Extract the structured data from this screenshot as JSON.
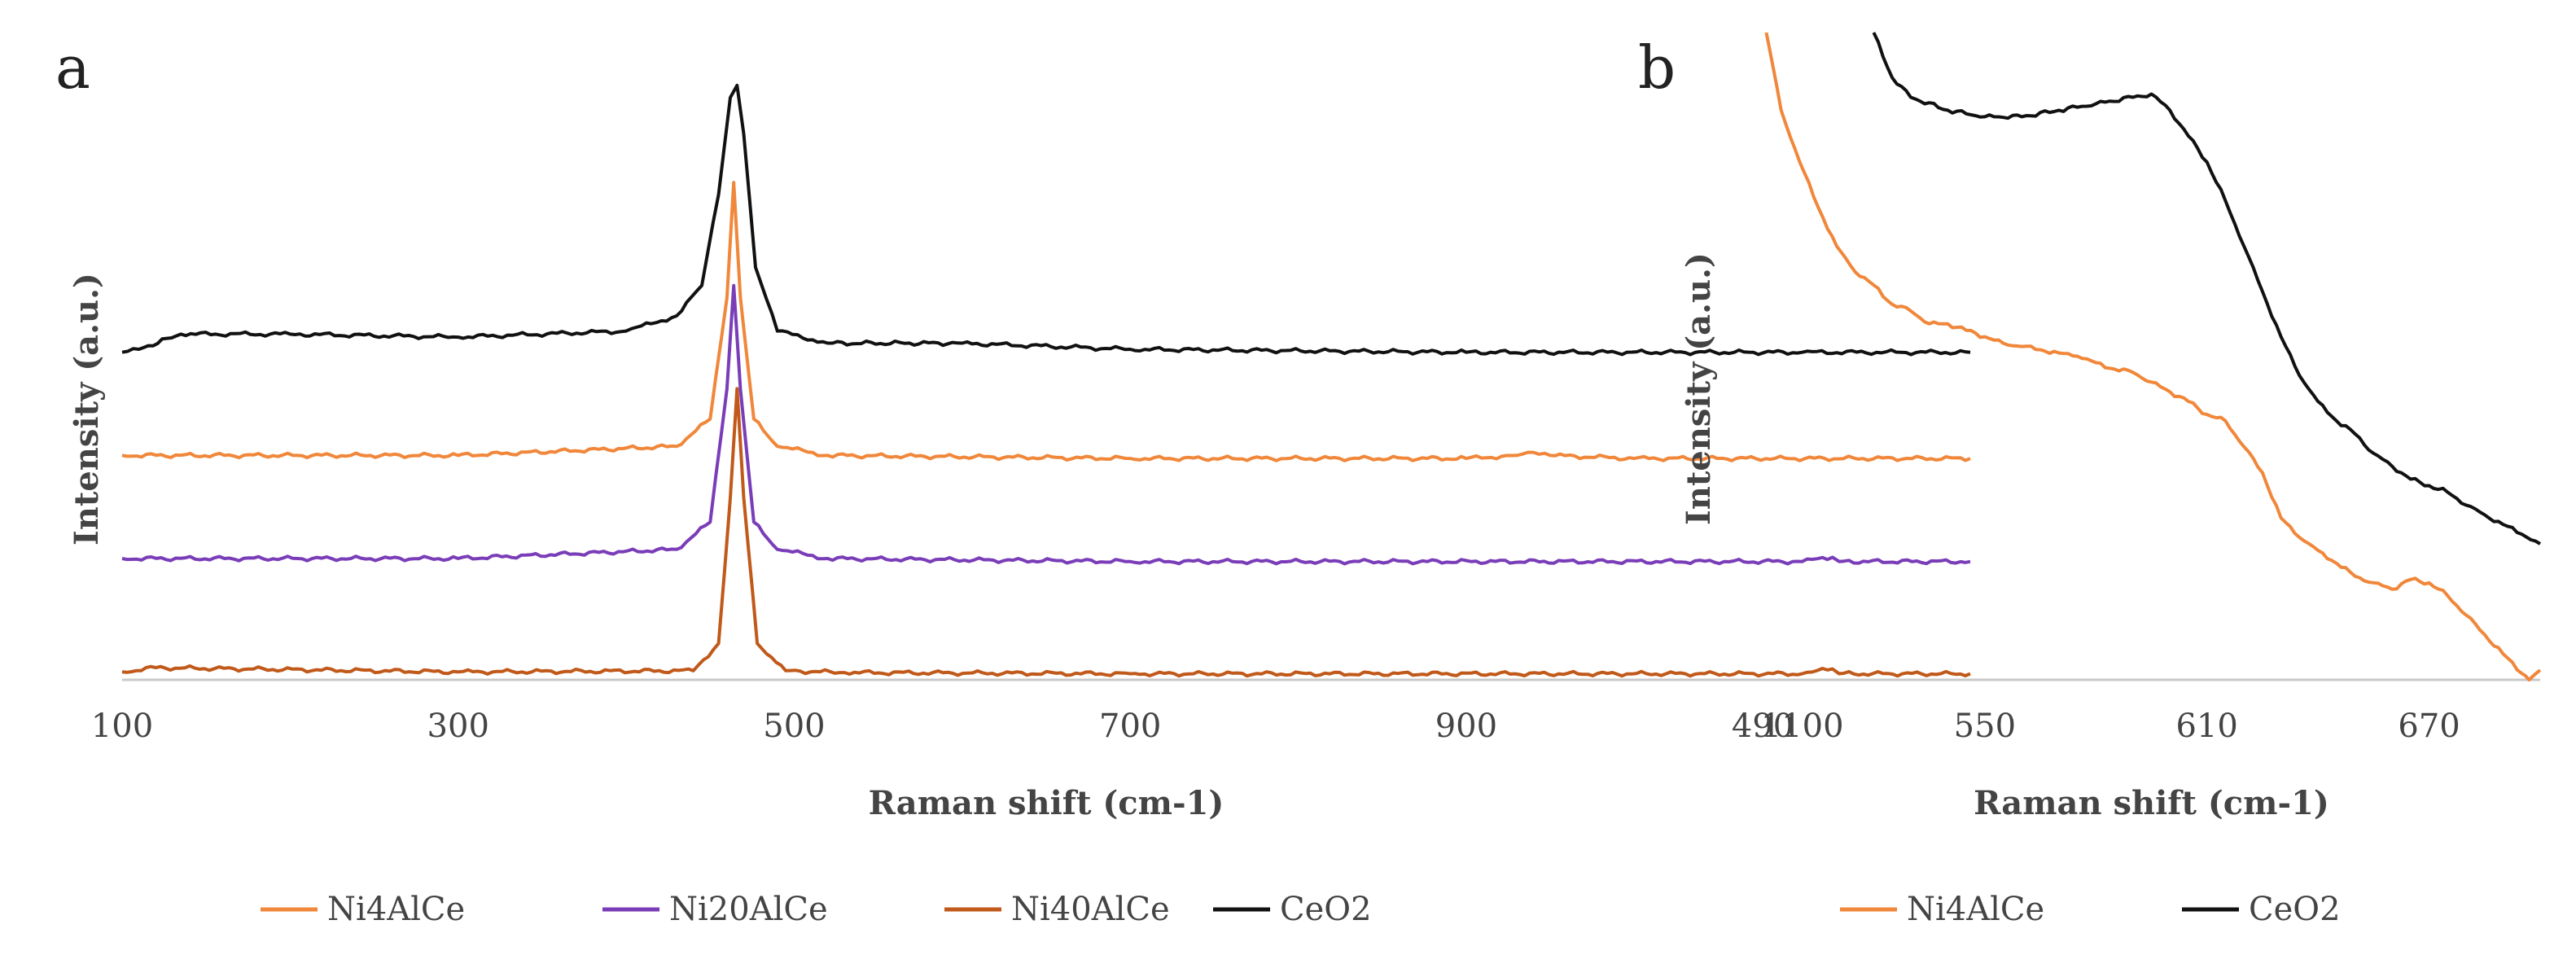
{
  "chart_data": [
    {
      "panel": "a",
      "type": "line",
      "title": "",
      "xlabel": "Raman shift (cm-1)",
      "ylabel": "Intensity (a.u.)",
      "xlim": [
        100,
        1200
      ],
      "ylim": [
        0,
        100
      ],
      "xticks": [
        100,
        300,
        500,
        700,
        900,
        1100
      ],
      "yticks": [],
      "legend_position": "bottom",
      "series": [
        {
          "name": "Ni4AlCe",
          "color": "#f0873a",
          "x": [
            100,
            300,
            430,
            450,
            460,
            464,
            468,
            476,
            490,
            520,
            700,
            900,
            930,
            940,
            950,
            1000,
            1200
          ],
          "y": [
            37,
            37,
            38.5,
            43,
            63,
            82,
            63,
            43,
            38.5,
            37,
            36.5,
            36.5,
            37,
            37.5,
            37,
            36.5,
            36.5
          ]
        },
        {
          "name": "Ni20AlCe",
          "color": "#7a3db8",
          "x": [
            100,
            300,
            430,
            450,
            460,
            464,
            468,
            476,
            490,
            520,
            700,
            1100,
            1118,
            1122,
            1200
          ],
          "y": [
            20,
            20,
            21.5,
            26,
            48,
            65,
            48,
            26,
            21.5,
            20,
            19.5,
            19.5,
            20.2,
            19.5,
            19.5
          ]
        },
        {
          "name": "Ni40AlCe",
          "color": "#c0591a",
          "x": [
            100,
            120,
            300,
            440,
            455,
            462,
            466,
            470,
            478,
            495,
            530,
            700,
            1100,
            1118,
            1122,
            1200
          ],
          "y": [
            1.3,
            2,
            1.3,
            1.5,
            6,
            30,
            48,
            30,
            6,
            1.5,
            1.2,
            1,
            1,
            1.8,
            1,
            1
          ]
        },
        {
          "name": "CeO2",
          "color": "#111111",
          "x": [
            100,
            110,
            135,
            200,
            300,
            400,
            430,
            445,
            455,
            462,
            466,
            470,
            477,
            490,
            520,
            600,
            700,
            900,
            1100,
            1200
          ],
          "y": [
            54,
            54.5,
            57,
            57,
            56.5,
            57.5,
            60,
            65,
            80,
            96,
            98,
            90,
            68,
            57.5,
            55.5,
            55.5,
            54.5,
            54,
            54,
            54
          ]
        }
      ]
    },
    {
      "panel": "b",
      "type": "line",
      "title": "",
      "xlabel": "Raman shift (cm-1)",
      "ylabel": "Intensity (a.u.)",
      "xlim": [
        490,
        700
      ],
      "ylim": [
        0,
        100
      ],
      "xticks": [
        490,
        550,
        610,
        670
      ],
      "yticks": [],
      "legend_position": "bottom",
      "series": [
        {
          "name": "Ni4AlCe",
          "color": "#f0873a",
          "x": [
            491,
            495,
            500,
            505,
            510,
            515,
            520,
            525,
            530,
            535,
            540,
            545,
            550,
            555,
            560,
            565,
            570,
            575,
            580,
            585,
            590,
            595,
            600,
            605,
            610,
            615,
            620,
            625,
            630,
            635,
            640,
            645,
            650,
            655,
            660,
            665,
            670,
            675,
            680,
            685,
            690,
            695,
            697,
            700
          ],
          "y": [
            100,
            88,
            80,
            73,
            67,
            63,
            61,
            58,
            57,
            55,
            55,
            54,
            53,
            52,
            51.5,
            51,
            50.5,
            50,
            49,
            48,
            47.5,
            46,
            44.5,
            43,
            41,
            40,
            36,
            32,
            25,
            22,
            20,
            18,
            16,
            15,
            14,
            15.5,
            15,
            13,
            10,
            7,
            4,
            1,
            0,
            1.5
          ]
        },
        {
          "name": "CeO2",
          "color": "#111111",
          "x": [
            520,
            525,
            530,
            540,
            550,
            560,
            570,
            580,
            590,
            595,
            600,
            605,
            610,
            615,
            620,
            625,
            630,
            635,
            640,
            645,
            650,
            655,
            660,
            665,
            670,
            675,
            680,
            685,
            690,
            695,
            700
          ],
          "y": [
            100,
            93,
            90,
            88,
            87,
            87,
            88,
            89,
            90,
            90.5,
            88,
            84,
            80,
            74,
            67,
            60,
            53,
            47,
            43,
            40,
            38,
            35,
            33,
            31,
            30,
            29,
            27,
            25.5,
            24,
            22.5,
            21
          ]
        }
      ]
    }
  ],
  "legend_a": [
    {
      "label": "Ni4AlCe",
      "color": "#f0873a"
    },
    {
      "label": "Ni20AlCe",
      "color": "#7a3db8"
    },
    {
      "label": "Ni40AlCe",
      "color": "#c0591a"
    },
    {
      "label": "CeO2",
      "color": "#111111"
    }
  ],
  "legend_b": [
    {
      "label": "Ni4AlCe",
      "color": "#f0873a"
    },
    {
      "label": "CeO2",
      "color": "#111111"
    }
  ],
  "panel_labels": {
    "a": "a",
    "b": "b"
  }
}
